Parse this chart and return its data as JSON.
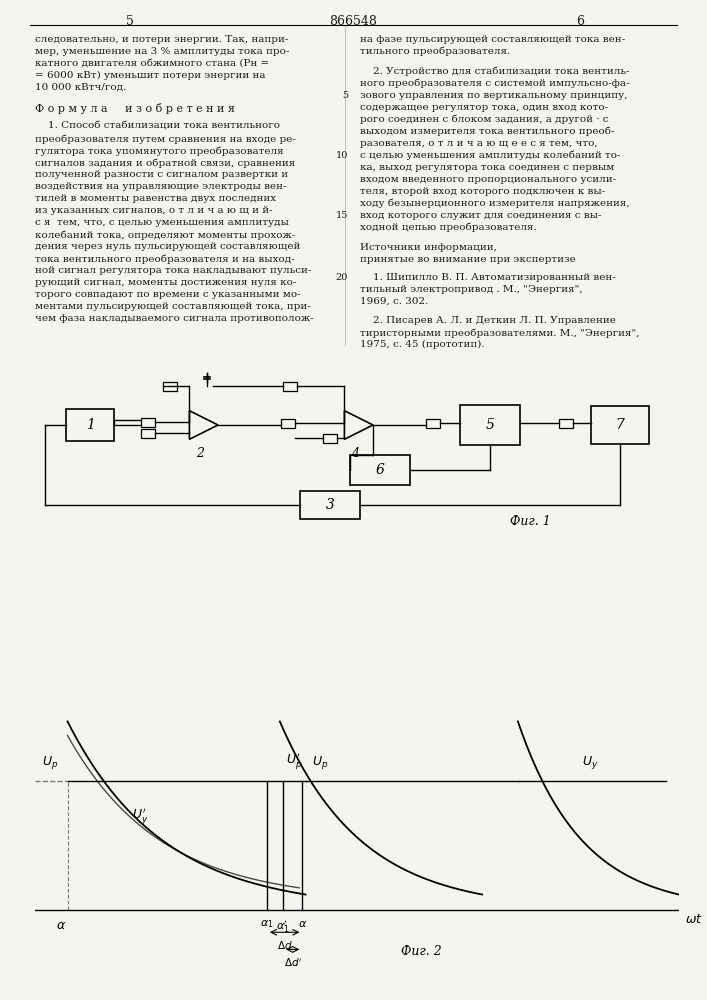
{
  "page_number_left": "5",
  "page_number_center": "866548",
  "page_number_right": "6",
  "background_color": "#f5f5f0",
  "text_color": "#1a1a1a",
  "fig1_label": "Фиг. 1",
  "fig2_label": "Фиг. 2",
  "left_column_text": "следовательно, и потери энергии. Так, напри-мер, уменьшение на 3 % амплитуды тока про-катного двигателя обжимного стана (Рн =\n= 6000 кВт) уменьшит потери энергии на\n10 000 кВтч/год.",
  "formula_header": "Ф о р м у л а     и з о б р е т е н и я",
  "claim1_text": "    1. Способ стабилизации тока вентильного\nпреобразователя путем сравнения на входе ре-\nгулятора тока упомянутого преобразователя\nсигналов задания и обратной связи, сравнения\nполученной разности с сигналом развертки и\nвоздействия на управляющие электроды вен-\nтилей в моменты равенства двух последних\nиз указанных сигналов, о т л и ч а ю щ и й-\nс я  тем, что, с целью уменьшения амплитуды\nколебаний тока, определяют моменты прохож-\nдения через нуль пульсирующей составляющей\nтока вентильного преобразователя и на выход-\nной сигнал регулятора тока накладывают пульси-\nрующий сигнал, моменты достижения нуля ко-\nторого совпадают по времени с указанными мо-\nментами пульсирующей составляющей тока, при-\nчем фаза накладываемого сигнала противополож-",
  "right_col_text1": "на фазе пульсирующей составляющей тока вен-\nтильного преобразователя.",
  "claim2_header": "    2. Устройство для стабилизации тока вентиль-",
  "sources_header": "Источники информации,",
  "sources_subheader": "принятые во внимание при экспертизе"
}
